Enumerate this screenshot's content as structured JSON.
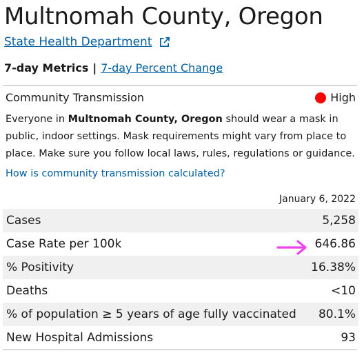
{
  "header": {
    "title": "Multnomah County, Oregon",
    "state_link": "State Health Department"
  },
  "metrics_nav": {
    "current": "7-day Metrics",
    "separator": "|",
    "alternate": "7-day Percent Change"
  },
  "transmission": {
    "label": "Community Transmission",
    "level": "High",
    "level_color": "#ff0000",
    "para_prefix": "Everyone in ",
    "para_bold": "Multnomah County, Oregon",
    "para_suffix": " should wear a mask in public, indoor settings. Mask requirements might vary from place to place. Make sure you follow local laws, rules, regulations or guidance.",
    "how_link": "How is community transmission calculated?"
  },
  "table": {
    "date": "January 6, 2022",
    "rows": [
      {
        "label": "Cases",
        "value": "5,258"
      },
      {
        "label": "Case Rate per 100k",
        "value": "646.86"
      },
      {
        "label": "% Positivity",
        "value": "16.38%"
      },
      {
        "label": "Deaths",
        "value": "<10"
      },
      {
        "label": "% of population ≥ 5 years of age fully vaccinated",
        "value": "80.1%"
      },
      {
        "label": "New Hospital Admissions",
        "value": "93"
      }
    ]
  },
  "annotation": {
    "icon": "arrow-right-icon",
    "color": "#ee44ee"
  },
  "colors": {
    "link": "#005ea2",
    "row_shade": "#f0f0f0"
  }
}
